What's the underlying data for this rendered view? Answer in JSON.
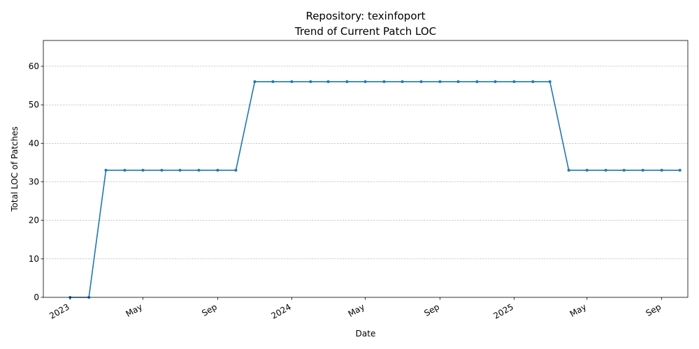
{
  "chart_data": {
    "type": "line",
    "title_line1": "Repository: texinfoport",
    "title_line2": "Trend of Current Patch LOC",
    "xlabel": "Date",
    "ylabel": "Total LOC of Patches",
    "ylim": [
      0,
      66.7
    ],
    "yticks": [
      0,
      10,
      20,
      30,
      40,
      50,
      60
    ],
    "xlim": [
      "2022-11-18",
      "2025-10-14"
    ],
    "xticks": [
      {
        "date": "2023-01-01",
        "label": "2023"
      },
      {
        "date": "2023-05-01",
        "label": "May"
      },
      {
        "date": "2023-09-01",
        "label": "Sep"
      },
      {
        "date": "2024-01-01",
        "label": "2024"
      },
      {
        "date": "2024-05-01",
        "label": "May"
      },
      {
        "date": "2024-09-01",
        "label": "Sep"
      },
      {
        "date": "2025-01-01",
        "label": "2025"
      },
      {
        "date": "2025-05-01",
        "label": "May"
      },
      {
        "date": "2025-09-01",
        "label": "Sep"
      }
    ],
    "grid": "y-dashed",
    "series": [
      {
        "name": "Patch LOC",
        "color": "#1f77b4",
        "x": [
          "2023-01-01",
          "2023-02-01",
          "2023-03-01",
          "2023-04-01",
          "2023-05-01",
          "2023-06-01",
          "2023-07-01",
          "2023-08-01",
          "2023-09-01",
          "2023-10-01",
          "2023-11-01",
          "2023-12-01",
          "2024-01-01",
          "2024-02-01",
          "2024-03-01",
          "2024-04-01",
          "2024-05-01",
          "2024-06-01",
          "2024-07-01",
          "2024-08-01",
          "2024-09-01",
          "2024-10-01",
          "2024-11-01",
          "2024-12-01",
          "2025-01-01",
          "2025-02-01",
          "2025-03-01",
          "2025-04-01",
          "2025-05-01",
          "2025-06-01",
          "2025-07-01",
          "2025-08-01",
          "2025-09-01",
          "2025-10-01"
        ],
        "values": [
          0,
          0,
          33,
          33,
          33,
          33,
          33,
          33,
          33,
          33,
          56,
          56,
          56,
          56,
          56,
          56,
          56,
          56,
          56,
          56,
          56,
          56,
          56,
          56,
          56,
          56,
          56,
          33,
          33,
          33,
          33,
          33,
          33,
          33
        ]
      }
    ]
  }
}
